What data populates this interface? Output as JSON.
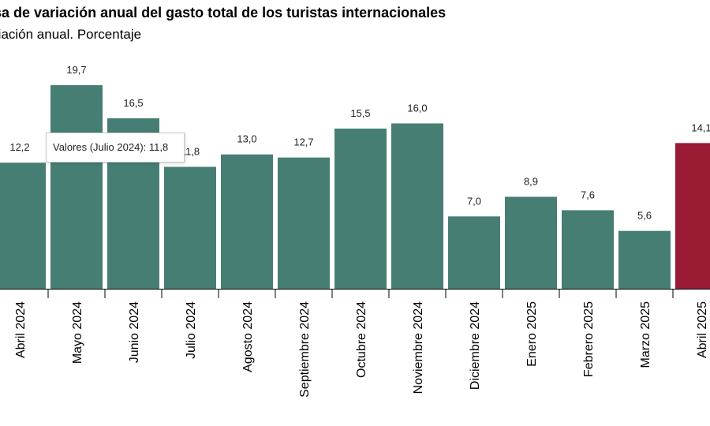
{
  "header": {
    "title": "sa de variación anual del gasto total de los turistas internacionales",
    "subtitle": "riación anual. Porcentaje"
  },
  "tooltip": {
    "text": "Valores (Julio 2024): 11,8"
  },
  "colors": {
    "bar": "#467e74",
    "highlight": "#991b34",
    "axis": "#000000"
  },
  "chart_data": {
    "type": "bar",
    "categories": [
      "Abril 2024",
      "Mayo 2024",
      "Junio 2024",
      "Julio 2024",
      "Agosto 2024",
      "Septiembre 2024",
      "Octubre 2024",
      "Noviembre 2024",
      "Diciembre 2024",
      "Enero 2025",
      "Febrero 2025",
      "Marzo 2025",
      "Abril 2025"
    ],
    "values": [
      12.2,
      19.7,
      16.5,
      11.8,
      13.0,
      12.7,
      15.5,
      16.0,
      7.0,
      8.9,
      7.6,
      5.6,
      14.1
    ],
    "value_labels": [
      "12,2",
      "19,7",
      "16,5",
      "11,8",
      "13,0",
      "12,7",
      "15,5",
      "16,0",
      "7,0",
      "8,9",
      "7,6",
      "5,6",
      "14,1"
    ],
    "highlight_index": 12,
    "title": "sa de variación anual del gasto total de los turistas internacionales",
    "subtitle": "riación anual. Porcentaje",
    "xlabel": "",
    "ylabel": "",
    "ylim": [
      0,
      19.7
    ],
    "grid": false,
    "legend": "none"
  }
}
